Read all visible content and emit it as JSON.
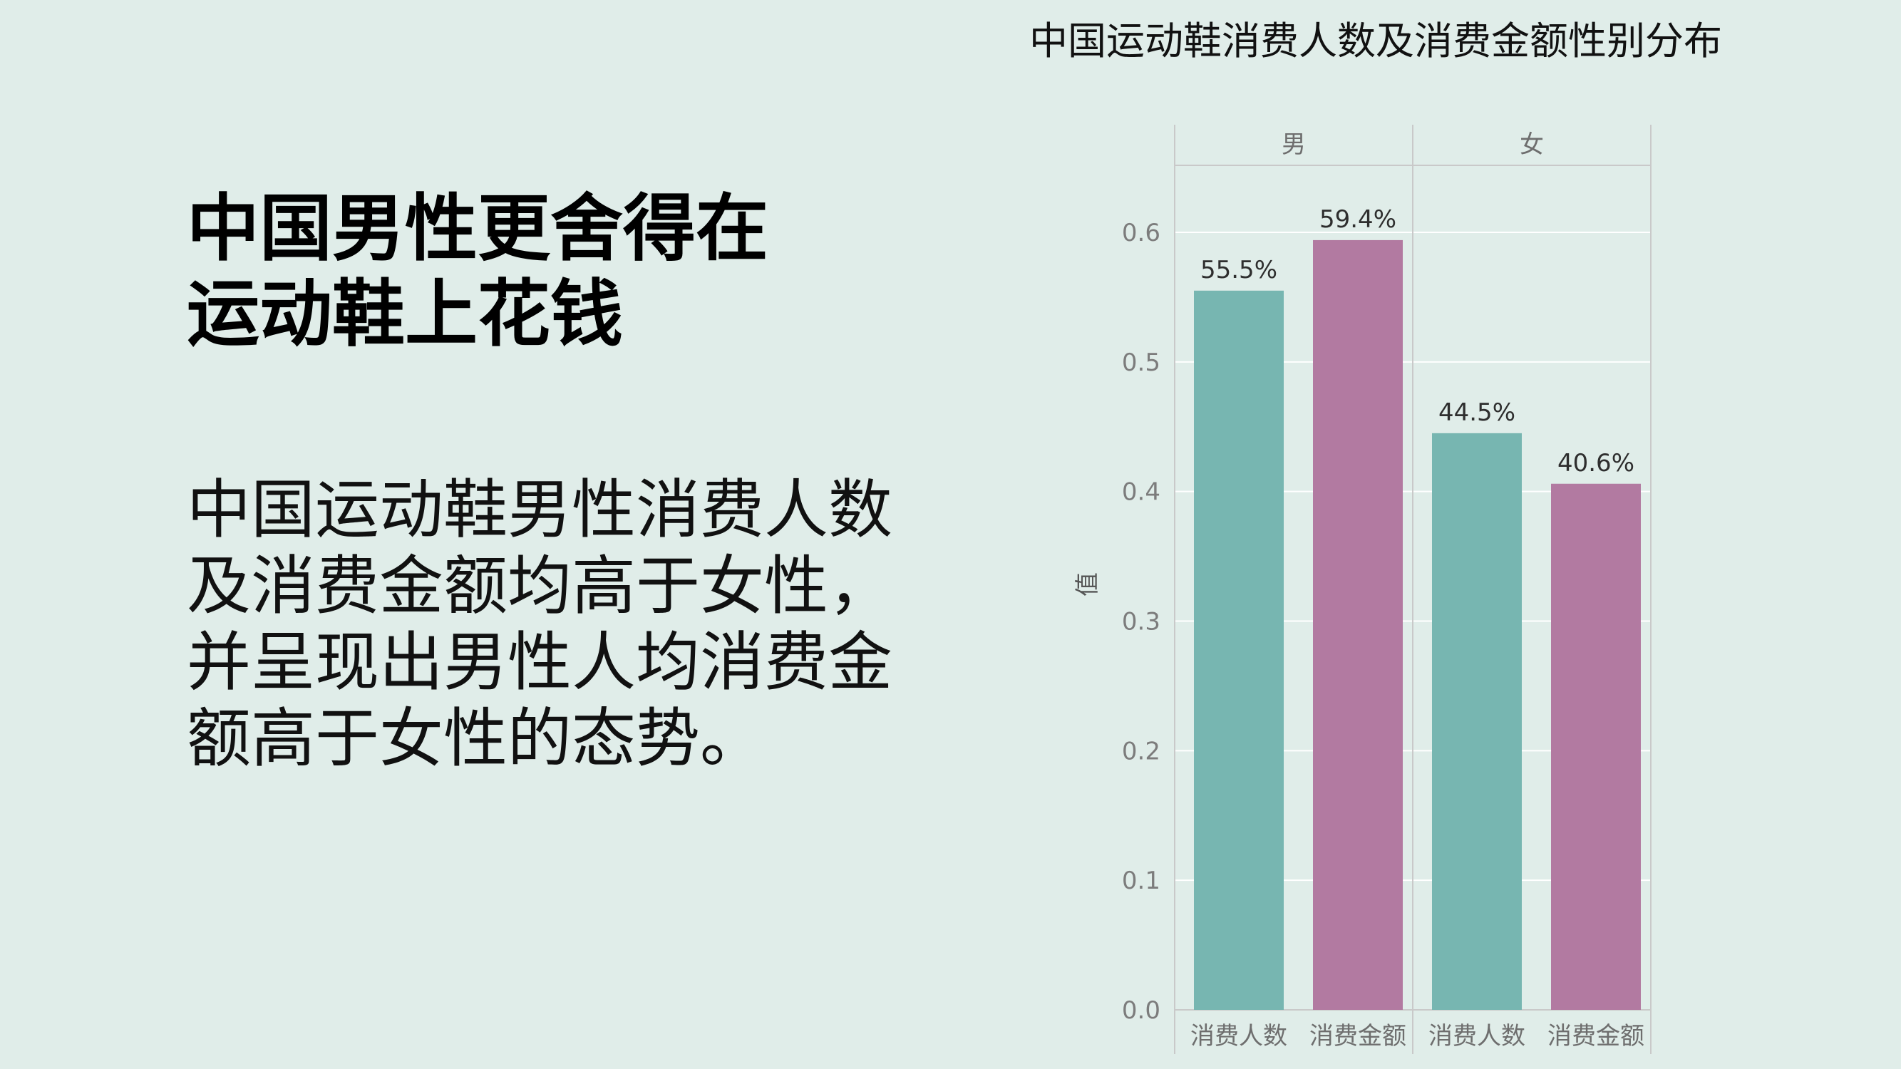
{
  "slide": {
    "headline_lines": [
      "中国男性更舍得在",
      "运动鞋上花钱"
    ],
    "body_lines": [
      "中国运动鞋男性消费人数",
      "及消费金额均高于女性，",
      "并呈现出男性人均消费金",
      "额高于女性的态势。"
    ]
  },
  "colors": {
    "background": "#e0ede9",
    "消费人数": "#77b6b1",
    "消费金额": "#b27aa1"
  },
  "chart_data": {
    "type": "bar",
    "title": "中国运动鞋消费人数及消费金额性别分布",
    "ylabel": "值",
    "xlabel": "",
    "ylim": [
      0,
      0.65
    ],
    "yticks": [
      "0.0",
      "0.1",
      "0.2",
      "0.3",
      "0.4",
      "0.5",
      "0.6"
    ],
    "grid": true,
    "facets": [
      {
        "name": "男",
        "bars": [
          {
            "category": "消费人数",
            "value": 0.555,
            "label": "55.5%"
          },
          {
            "category": "消费金额",
            "value": 0.594,
            "label": "59.4%"
          }
        ]
      },
      {
        "name": "女",
        "bars": [
          {
            "category": "消费人数",
            "value": 0.445,
            "label": "44.5%"
          },
          {
            "category": "消费金额",
            "value": 0.406,
            "label": "40.6%"
          }
        ]
      }
    ]
  }
}
